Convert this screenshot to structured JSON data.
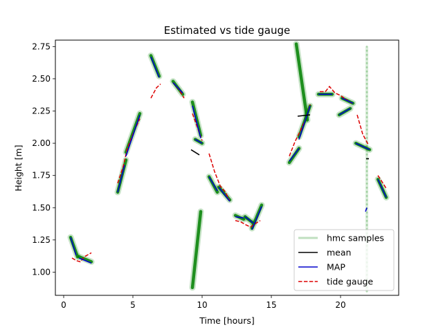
{
  "chart_data": {
    "type": "line",
    "title": "Estimated vs tide gauge",
    "xlabel": "Time [hours]",
    "ylabel": "Height [m]",
    "xlim": [
      -0.6,
      24.2
    ],
    "ylim": [
      0.82,
      2.8
    ],
    "xticks": [
      0,
      5,
      10,
      15,
      20
    ],
    "yticks": [
      1.0,
      1.25,
      1.5,
      1.75,
      2.0,
      2.25,
      2.5,
      2.75
    ],
    "ytick_labels": [
      "1.00",
      "1.25",
      "1.50",
      "1.75",
      "2.00",
      "2.25",
      "2.50",
      "2.75"
    ],
    "legend_position": "lower right",
    "colors": {
      "hmc": "#008000",
      "mean": "#000000",
      "map": "#0000cc",
      "tide": "#dd0000"
    },
    "series": [
      {
        "name": "hmc samples",
        "style": "band",
        "segments": [
          [
            [
              0.5,
              1.27
            ],
            [
              1.0,
              1.12
            ]
          ],
          [
            [
              1.1,
              1.12
            ],
            [
              2.0,
              1.08
            ]
          ],
          [
            [
              3.9,
              1.62
            ],
            [
              4.5,
              1.87
            ]
          ],
          [
            [
              4.5,
              1.93
            ],
            [
              5.5,
              2.23
            ]
          ],
          [
            [
              6.3,
              2.68
            ],
            [
              6.9,
              2.52
            ]
          ],
          [
            [
              7.9,
              2.48
            ],
            [
              8.6,
              2.38
            ]
          ],
          [
            [
              9.3,
              0.88
            ],
            [
              9.9,
              1.47
            ]
          ],
          [
            [
              9.3,
              2.32
            ],
            [
              9.9,
              2.06
            ]
          ],
          [
            [
              9.5,
              2.03
            ],
            [
              10.0,
              2.0
            ]
          ],
          [
            [
              10.5,
              1.74
            ],
            [
              11.1,
              1.62
            ]
          ],
          [
            [
              11.2,
              1.66
            ],
            [
              12.0,
              1.56
            ]
          ],
          [
            [
              12.4,
              1.44
            ],
            [
              13.0,
              1.41
            ]
          ],
          [
            [
              13.1,
              1.43
            ],
            [
              13.7,
              1.38
            ]
          ],
          [
            [
              13.6,
              1.34
            ],
            [
              14.3,
              1.52
            ]
          ],
          [
            [
              16.3,
              1.85
            ],
            [
              17.0,
              1.96
            ]
          ],
          [
            [
              16.8,
              2.77
            ],
            [
              17.6,
              2.18
            ]
          ],
          [
            [
              17.0,
              2.05
            ],
            [
              17.8,
              2.29
            ]
          ],
          [
            [
              18.4,
              2.38
            ],
            [
              19.4,
              2.38
            ]
          ],
          [
            [
              19.9,
              2.22
            ],
            [
              20.7,
              2.27
            ]
          ],
          [
            [
              20.1,
              2.35
            ],
            [
              20.9,
              2.31
            ]
          ],
          [
            [
              21.1,
              2.0
            ],
            [
              22.1,
              1.95
            ]
          ],
          [
            [
              22.7,
              1.72
            ],
            [
              23.3,
              1.58
            ]
          ]
        ],
        "scatter_samples": {
          "x": 21.9,
          "y_range": [
            0.85,
            2.75
          ]
        }
      },
      {
        "name": "mean",
        "style": "line",
        "segments": [
          [
            [
              9.2,
              1.95
            ],
            [
              9.8,
              1.91
            ]
          ],
          [
            [
              16.9,
              2.21
            ],
            [
              17.8,
              2.22
            ]
          ],
          [
            [
              21.85,
              1.88
            ],
            [
              22.05,
              1.88
            ]
          ]
        ]
      },
      {
        "name": "MAP",
        "style": "line",
        "segments": [
          [
            [
              0.5,
              1.27
            ],
            [
              0.9,
              1.13
            ]
          ],
          [
            [
              1.1,
              1.11
            ],
            [
              2.0,
              1.07
            ]
          ],
          [
            [
              3.9,
              1.62
            ],
            [
              4.4,
              1.83
            ]
          ],
          [
            [
              4.5,
              1.9
            ],
            [
              5.5,
              2.22
            ]
          ],
          [
            [
              6.3,
              2.67
            ],
            [
              6.9,
              2.51
            ]
          ],
          [
            [
              7.9,
              2.47
            ],
            [
              8.6,
              2.39
            ]
          ],
          [
            [
              9.3,
              2.29
            ],
            [
              9.9,
              2.04
            ]
          ],
          [
            [
              9.5,
              2.03
            ],
            [
              10.0,
              2.0
            ]
          ],
          [
            [
              10.5,
              1.74
            ],
            [
              11.1,
              1.63
            ]
          ],
          [
            [
              11.2,
              1.66
            ],
            [
              12.0,
              1.55
            ]
          ],
          [
            [
              12.4,
              1.43
            ],
            [
              13.0,
              1.42
            ]
          ],
          [
            [
              13.1,
              1.43
            ],
            [
              13.7,
              1.38
            ]
          ],
          [
            [
              13.6,
              1.33
            ],
            [
              14.3,
              1.51
            ]
          ],
          [
            [
              16.3,
              1.86
            ],
            [
              17.0,
              1.96
            ]
          ],
          [
            [
              17.0,
              2.03
            ],
            [
              17.8,
              2.29
            ]
          ],
          [
            [
              18.4,
              2.38
            ],
            [
              19.4,
              2.38
            ]
          ],
          [
            [
              19.9,
              2.22
            ],
            [
              20.7,
              2.27
            ]
          ],
          [
            [
              20.1,
              2.35
            ],
            [
              20.9,
              2.31
            ]
          ],
          [
            [
              21.1,
              2.0
            ],
            [
              22.1,
              1.95
            ]
          ],
          [
            [
              21.8,
              1.47
            ],
            [
              21.9,
              1.5
            ]
          ],
          [
            [
              22.7,
              1.72
            ],
            [
              23.3,
              1.58
            ]
          ]
        ]
      },
      {
        "name": "tide gauge",
        "style": "dashed",
        "segments": [
          [
            [
              0.6,
              1.11
            ],
            [
              0.9,
              1.09
            ],
            [
              1.2,
              1.08
            ],
            [
              1.5,
              1.12
            ],
            [
              2.0,
              1.15
            ]
          ],
          [
            [
              3.9,
              1.69
            ],
            [
              4.3,
              1.82
            ],
            [
              4.6,
              1.96
            ],
            [
              5.0,
              2.07
            ],
            [
              5.5,
              2.19
            ]
          ],
          [
            [
              6.3,
              2.35
            ],
            [
              6.7,
              2.43
            ],
            [
              7.0,
              2.46
            ]
          ],
          [
            [
              7.9,
              2.47
            ],
            [
              8.3,
              2.42
            ],
            [
              8.7,
              2.35
            ]
          ],
          [
            [
              9.3,
              2.23
            ],
            [
              9.7,
              2.11
            ],
            [
              10.0,
              2.02
            ]
          ],
          [
            [
              10.5,
              1.92
            ],
            [
              10.9,
              1.78
            ],
            [
              11.3,
              1.67
            ],
            [
              11.7,
              1.62
            ],
            [
              12.0,
              1.55
            ]
          ],
          [
            [
              12.4,
              1.4
            ],
            [
              12.8,
              1.39
            ],
            [
              13.1,
              1.37
            ],
            [
              13.5,
              1.35
            ],
            [
              13.9,
              1.38
            ],
            [
              14.2,
              1.4
            ]
          ],
          [
            [
              16.3,
              1.9
            ],
            [
              16.7,
              2.01
            ],
            [
              17.1,
              2.1
            ],
            [
              17.5,
              2.19
            ],
            [
              17.8,
              2.3
            ]
          ],
          [
            [
              18.5,
              2.4
            ],
            [
              18.9,
              2.4
            ],
            [
              19.2,
              2.44
            ],
            [
              19.6,
              2.39
            ],
            [
              20.0,
              2.37
            ],
            [
              20.4,
              2.34
            ],
            [
              20.8,
              2.31
            ]
          ],
          [
            [
              21.2,
              2.22
            ],
            [
              21.6,
              2.07
            ],
            [
              22.0,
              1.99
            ]
          ],
          [
            [
              22.7,
              1.75
            ],
            [
              23.3,
              1.65
            ]
          ]
        ]
      }
    ]
  }
}
